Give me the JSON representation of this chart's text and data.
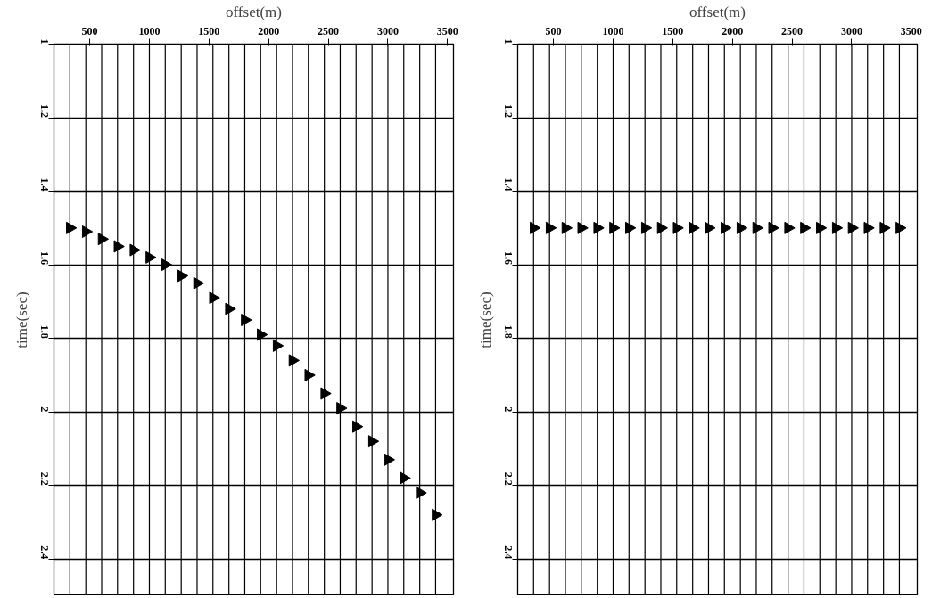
{
  "chart_data": [
    {
      "type": "scatter",
      "xlabel": "offset(m)",
      "ylabel": "time(sec)",
      "xlim": [
        200,
        3550
      ],
      "ylim": [
        2.5,
        1
      ],
      "xticks": [
        500,
        1000,
        1500,
        2000,
        2500,
        3000,
        3500
      ],
      "yticks": [
        1,
        1.2,
        1.4,
        1.6,
        1.8,
        2,
        2.2,
        2.4
      ],
      "grid": true,
      "marker": "triangle",
      "series": [
        {
          "color": "#000000",
          "x": [
            333,
            467,
            600,
            733,
            867,
            1000,
            1133,
            1267,
            1400,
            1533,
            1667,
            1800,
            1933,
            2067,
            2200,
            2333,
            2467,
            2600,
            2733,
            2867,
            3000,
            3133,
            3267,
            3400
          ],
          "values": [
            1.5,
            1.51,
            1.53,
            1.55,
            1.56,
            1.58,
            1.6,
            1.63,
            1.65,
            1.69,
            1.72,
            1.75,
            1.79,
            1.82,
            1.86,
            1.9,
            1.95,
            1.99,
            2.04,
            2.08,
            2.13,
            2.18,
            2.22,
            2.28
          ]
        }
      ]
    },
    {
      "type": "scatter",
      "xlabel": "offset(m)",
      "ylabel": "time(sec)",
      "xlim": [
        200,
        3550
      ],
      "ylim": [
        2.5,
        1
      ],
      "xticks": [
        500,
        1000,
        1500,
        2000,
        2500,
        3000,
        3500
      ],
      "yticks": [
        1,
        1.2,
        1.4,
        1.6,
        1.8,
        2,
        2.2,
        2.4
      ],
      "grid": true,
      "marker": "triangle",
      "series": [
        {
          "color": "#000000",
          "x": [
            333,
            467,
            600,
            733,
            867,
            1000,
            1133,
            1267,
            1400,
            1533,
            1667,
            1800,
            1933,
            2067,
            2200,
            2333,
            2467,
            2600,
            2733,
            2867,
            3000,
            3133,
            3267,
            3400
          ],
          "values": [
            1.5,
            1.5,
            1.5,
            1.5,
            1.5,
            1.5,
            1.5,
            1.5,
            1.5,
            1.5,
            1.5,
            1.5,
            1.5,
            1.5,
            1.5,
            1.5,
            1.5,
            1.5,
            1.5,
            1.5,
            1.5,
            1.5,
            1.5,
            1.5
          ]
        }
      ]
    }
  ]
}
